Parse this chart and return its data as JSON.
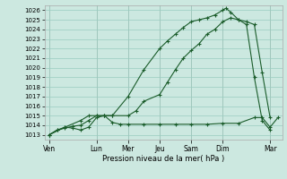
{
  "xlabel": "Pression niveau de la mer( hPa )",
  "ylim": [
    1012.5,
    1026.5
  ],
  "yticks": [
    1013,
    1014,
    1015,
    1016,
    1017,
    1018,
    1019,
    1020,
    1021,
    1022,
    1023,
    1024,
    1025,
    1026
  ],
  "background_color": "#cce8e0",
  "grid_color": "#99ccbf",
  "line_color": "#1a5c2a",
  "xtick_labels": [
    "Ven",
    "Lun",
    "Mer",
    "Jeu",
    "Sam",
    "Dim",
    "Mar"
  ],
  "xtick_positions": [
    0,
    3,
    5,
    7,
    9,
    11,
    14
  ],
  "xlim": [
    -0.3,
    14.8
  ],
  "series1_x": [
    0,
    0.5,
    1,
    1.5,
    2,
    2.5,
    3,
    3.5,
    4,
    4.5,
    5,
    6,
    7,
    8,
    9,
    10,
    11,
    12,
    13,
    13.5,
    14,
    14.5
  ],
  "series1_y": [
    1013.0,
    1013.5,
    1013.8,
    1013.7,
    1013.5,
    1013.8,
    1014.8,
    1015.0,
    1014.3,
    1014.1,
    1014.1,
    1014.1,
    1014.1,
    1014.1,
    1014.1,
    1014.1,
    1014.2,
    1014.2,
    1014.8,
    1014.8,
    1013.8,
    1014.8
  ],
  "series2_x": [
    0,
    0.5,
    1,
    1.5,
    2,
    2.5,
    3,
    3.5,
    4,
    5,
    5.5,
    6,
    7,
    7.5,
    8,
    8.5,
    9,
    9.5,
    10,
    10.5,
    11,
    11.5,
    12,
    12.5,
    13,
    13.5,
    14
  ],
  "series2_y": [
    1013.0,
    1013.5,
    1013.7,
    1013.9,
    1014.0,
    1014.5,
    1015.0,
    1015.0,
    1015.0,
    1015.0,
    1015.5,
    1016.5,
    1017.2,
    1018.5,
    1019.8,
    1021.0,
    1021.8,
    1022.5,
    1023.5,
    1024.0,
    1024.8,
    1025.2,
    1025.0,
    1024.8,
    1024.5,
    1019.5,
    1014.8
  ],
  "series3_x": [
    0,
    1,
    2,
    2.5,
    3,
    3.5,
    4,
    5,
    6,
    7,
    7.5,
    8,
    8.5,
    9,
    9.5,
    10,
    10.5,
    11,
    11.2,
    11.5,
    12,
    12.5,
    13,
    13.5,
    14
  ],
  "series3_y": [
    1013.0,
    1013.8,
    1014.5,
    1015.0,
    1015.0,
    1015.0,
    1015.0,
    1017.0,
    1019.8,
    1022.0,
    1022.8,
    1023.5,
    1024.2,
    1024.8,
    1025.0,
    1025.2,
    1025.5,
    1026.0,
    1026.2,
    1025.8,
    1025.0,
    1024.5,
    1019.0,
    1014.5,
    1013.5
  ]
}
